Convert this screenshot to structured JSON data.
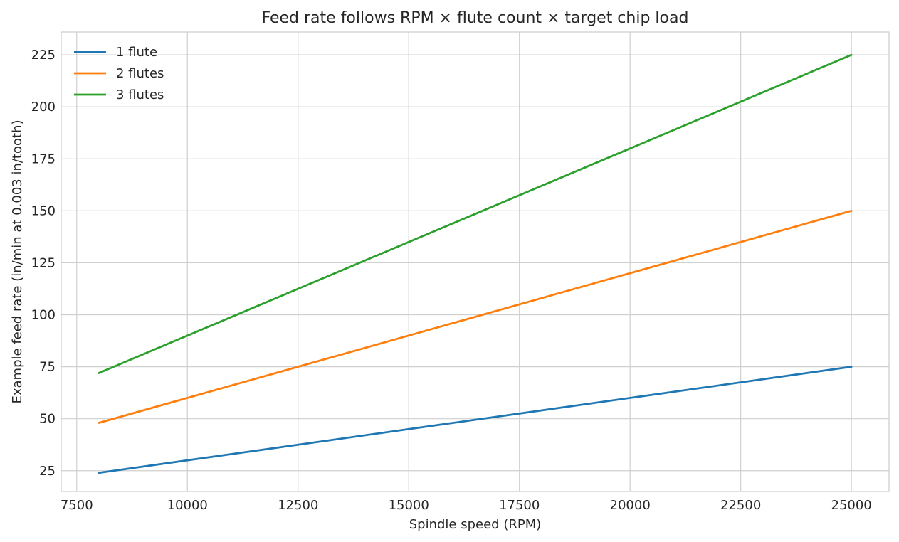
{
  "chart_data": {
    "type": "line",
    "title": "Feed rate follows RPM × flute count × target chip load",
    "xlabel": "Spindle speed (RPM)",
    "ylabel": "Example feed rate (in/min at 0.003 in/tooth)",
    "xlim": [
      7150,
      25850
    ],
    "ylim": [
      15,
      236
    ],
    "xticks": [
      7500,
      10000,
      12500,
      15000,
      17500,
      20000,
      22500,
      25000
    ],
    "xtick_labels": [
      "7500",
      "10000",
      "12500",
      "15000",
      "17500",
      "20000",
      "22500",
      "25000"
    ],
    "yticks": [
      25,
      50,
      75,
      100,
      125,
      150,
      175,
      200,
      225
    ],
    "ytick_labels": [
      "25",
      "50",
      "75",
      "100",
      "125",
      "150",
      "175",
      "200",
      "225"
    ],
    "grid": true,
    "legend_position": "top-left",
    "x": [
      8000,
      25000
    ],
    "series": [
      {
        "name": "1 flute",
        "color": "#1f77b4",
        "values": [
          24,
          75
        ]
      },
      {
        "name": "2 flutes",
        "color": "#ff7f0e",
        "values": [
          48,
          150
        ]
      },
      {
        "name": "3 flutes",
        "color": "#2ca02c",
        "values": [
          72,
          225
        ]
      }
    ]
  }
}
